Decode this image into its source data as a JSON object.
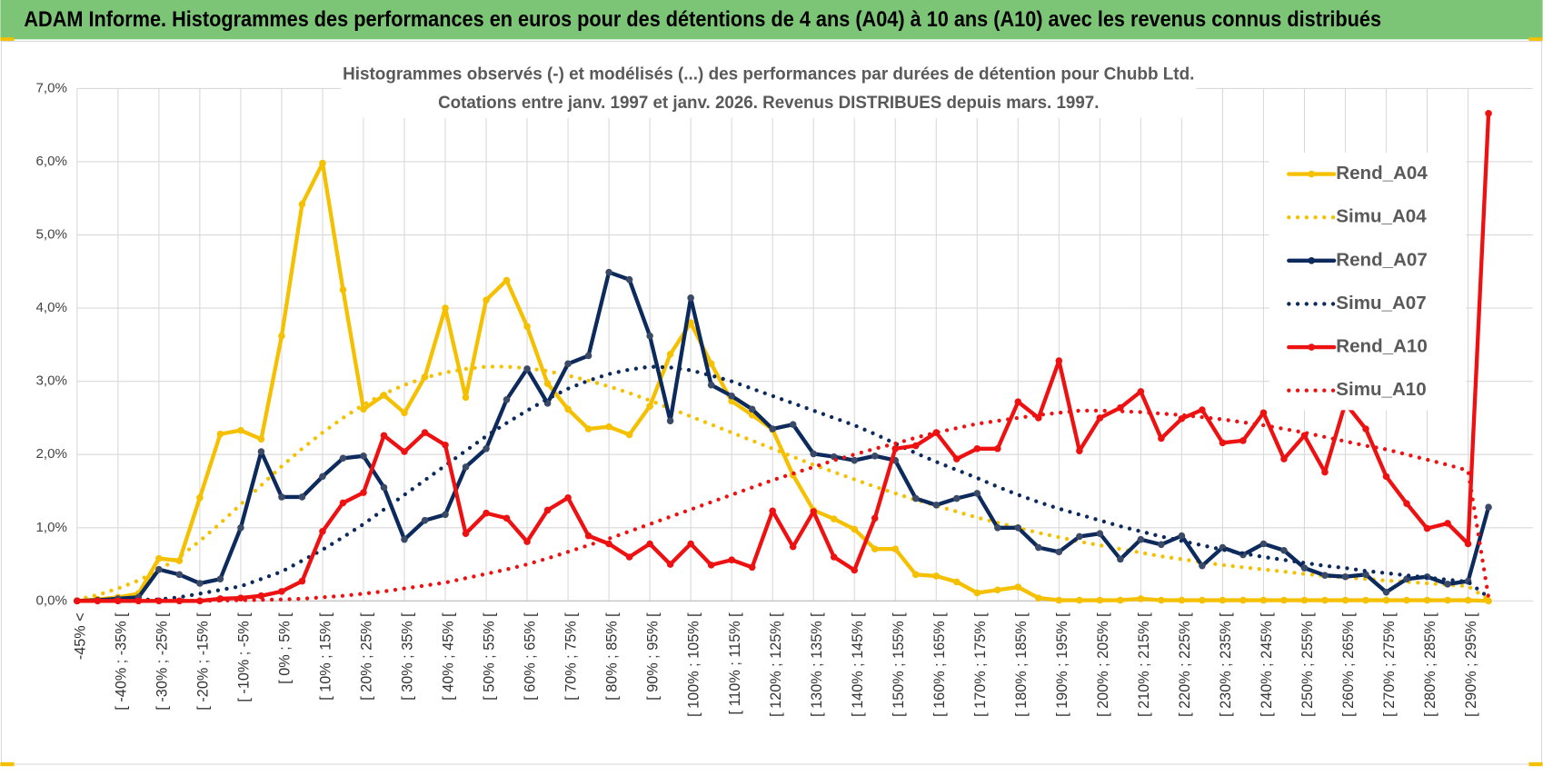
{
  "header": {
    "title": "ADAM Informe. Histogrammes des performances en euros pour des détentions de 4 ans (A04) à 10 ans (A10) avec les revenus connus distribués"
  },
  "chart_data": {
    "type": "line",
    "title": "Histogrammes observés (-) et modélisés (...) des performances par durées de détention pour Chubb Ltd.",
    "subtitle": "Cotations entre janv. 1997 et janv. 2026. Revenus DISTRIBUES depuis mars. 1997.",
    "categories": [
      "-45% <",
      null,
      "[ -40% ; -35% [",
      null,
      "[ -30% ; -25% [",
      null,
      "[ -20% ; -15% [",
      null,
      "[ -10% ; -5% [",
      null,
      "[ 0% ; 5% [",
      null,
      "[ 10% ; 15% [",
      null,
      "[ 20% ; 25% [",
      null,
      "[ 30% ; 35% [",
      null,
      "[ 40% ; 45% [",
      null,
      "[ 50% ; 55% [",
      null,
      "[ 60% ; 65% [",
      null,
      "[ 70% ; 75% [",
      null,
      "[ 80% ; 85% [",
      null,
      "[ 90% ; 95% [",
      null,
      "[ 100% ; 105% [",
      null,
      "[ 110% ; 115% [",
      null,
      "[ 120% ; 125% [",
      null,
      "[ 130% ; 135% [",
      null,
      "[ 140% ; 145% [",
      null,
      "[ 150% ; 155% [",
      null,
      "[ 160% ; 165% [",
      null,
      "[ 170% ; 175% [",
      null,
      "[ 180% ; 185% [",
      null,
      "[ 190% ; 195% [",
      null,
      "[ 200% ; 205% [",
      null,
      "[ 210% ; 215% [",
      null,
      "[ 220% ; 225% [",
      null,
      "[ 230% ; 235% [",
      null,
      "[ 240% ; 245% [",
      null,
      "[ 250% ; 255% [",
      null,
      "[ 260% ; 265% [",
      null,
      "[ 270% ; 275% [",
      null,
      "[ 280% ; 285% [",
      null,
      "[ 290% ; 295% [",
      null
    ],
    "ylim": [
      0,
      7
    ],
    "yticks": [
      {
        "value": 0,
        "label": "0,0%"
      },
      {
        "value": 1,
        "label": "1,0%"
      },
      {
        "value": 2,
        "label": "2,0%"
      },
      {
        "value": 3,
        "label": "3,0%"
      },
      {
        "value": 4,
        "label": "4,0%"
      },
      {
        "value": 5,
        "label": "5,0%"
      },
      {
        "value": 6,
        "label": "6,0%"
      },
      {
        "value": 7,
        "label": "7,0%"
      }
    ],
    "grid": true,
    "legend": "upper right",
    "series": [
      {
        "name": "Rend_A04",
        "color": "#f5c000",
        "style": "solid",
        "markers": true,
        "values": [
          0,
          0.02,
          0.05,
          0.1,
          0.58,
          0.55,
          1.41,
          2.28,
          2.33,
          2.21,
          3.62,
          5.42,
          5.98,
          4.25,
          2.62,
          2.81,
          2.57,
          3.06,
          4.0,
          2.78,
          4.11,
          4.38,
          3.75,
          2.97,
          2.62,
          2.35,
          2.38,
          2.27,
          2.66,
          3.37,
          3.8,
          3.24,
          2.73,
          2.54,
          2.34,
          1.72,
          1.24,
          1.12,
          0.98,
          0.71,
          0.71,
          0.36,
          0.34,
          0.26,
          0.11,
          0.15,
          0.19,
          0.04,
          0.01,
          0.01,
          0.01,
          0.01,
          0.03,
          0.01,
          0.01,
          0.01,
          0.01,
          0.01,
          0.01,
          0.01,
          0.01,
          0.01,
          0.01,
          0.01,
          0.01,
          0.01,
          0.01,
          0.01,
          0.01,
          0
        ]
      },
      {
        "name": "Simu_A04",
        "color": "#f5c000",
        "style": "dotted",
        "markers": false,
        "values": [
          0.02,
          0.08,
          0.17,
          0.28,
          0.42,
          0.6,
          0.82,
          1.06,
          1.32,
          1.58,
          1.84,
          2.08,
          2.3,
          2.5,
          2.68,
          2.83,
          2.95,
          3.05,
          3.12,
          3.17,
          3.2,
          3.2,
          3.18,
          3.14,
          3.08,
          3.01,
          2.93,
          2.84,
          2.74,
          2.63,
          2.52,
          2.41,
          2.3,
          2.19,
          2.08,
          1.97,
          1.86,
          1.76,
          1.66,
          1.56,
          1.47,
          1.38,
          1.3,
          1.22,
          1.14,
          1.07,
          1.0,
          0.93,
          0.87,
          0.81,
          0.76,
          0.71,
          0.66,
          0.61,
          0.57,
          0.53,
          0.49,
          0.46,
          0.43,
          0.4,
          0.37,
          0.34,
          0.32,
          0.3,
          0.28,
          0.26,
          0.24,
          0.22,
          0.2,
          0.02
        ]
      },
      {
        "name": "Rend_A07",
        "color": "#0d2a5c",
        "style": "solid",
        "markers": true,
        "values": [
          0,
          0.01,
          0.03,
          0.05,
          0.43,
          0.36,
          0.24,
          0.3,
          1.0,
          2.04,
          1.42,
          1.42,
          1.7,
          1.95,
          1.98,
          1.55,
          0.84,
          1.1,
          1.18,
          1.83,
          2.08,
          2.75,
          3.17,
          2.7,
          3.24,
          3.35,
          4.49,
          4.39,
          3.62,
          2.46,
          4.14,
          2.95,
          2.8,
          2.62,
          2.35,
          2.41,
          2.01,
          1.97,
          1.92,
          1.98,
          1.92,
          1.4,
          1.31,
          1.4,
          1.47,
          1.0,
          1.0,
          0.73,
          0.67,
          0.88,
          0.92,
          0.57,
          0.84,
          0.77,
          0.89,
          0.48,
          0.73,
          0.63,
          0.78,
          0.69,
          0.45,
          0.35,
          0.33,
          0.36,
          0.12,
          0.3,
          0.33,
          0.23,
          0.27,
          1.28
        ]
      },
      {
        "name": "Simu_A07",
        "color": "#0d2a5c",
        "style": "dotted",
        "markers": false,
        "values": [
          0,
          0.005,
          0.01,
          0.015,
          0.02,
          0.05,
          0.1,
          0.15,
          0.2,
          0.3,
          0.4,
          0.55,
          0.7,
          0.87,
          1.05,
          1.25,
          1.45,
          1.65,
          1.85,
          2.05,
          2.25,
          2.43,
          2.6,
          2.76,
          2.9,
          3.01,
          3.1,
          3.16,
          3.2,
          3.19,
          3.15,
          3.08,
          3.0,
          2.9,
          2.8,
          2.7,
          2.6,
          2.5,
          2.4,
          2.28,
          2.15,
          2.02,
          1.9,
          1.79,
          1.68,
          1.56,
          1.45,
          1.35,
          1.26,
          1.18,
          1.1,
          1.02,
          0.95,
          0.88,
          0.82,
          0.76,
          0.7,
          0.65,
          0.6,
          0.56,
          0.52,
          0.48,
          0.45,
          0.41,
          0.38,
          0.35,
          0.32,
          0.29,
          0.26,
          0.05
        ]
      },
      {
        "name": "Rend_A10",
        "color": "#ee1111",
        "style": "solid",
        "markers": true,
        "values": [
          0,
          0,
          0,
          0,
          0,
          0,
          0,
          0.03,
          0.04,
          0.07,
          0.13,
          0.27,
          0.95,
          1.34,
          1.48,
          2.26,
          2.04,
          2.3,
          2.13,
          0.92,
          1.2,
          1.13,
          0.81,
          1.24,
          1.41,
          0.89,
          0.78,
          0.6,
          0.78,
          0.5,
          0.78,
          0.49,
          0.56,
          0.46,
          1.23,
          0.74,
          1.22,
          0.6,
          0.42,
          1.13,
          2.08,
          2.12,
          2.3,
          1.94,
          2.08,
          2.08,
          2.72,
          2.5,
          3.28,
          2.05,
          2.5,
          2.64,
          2.86,
          2.22,
          2.49,
          2.61,
          2.16,
          2.19,
          2.57,
          1.94,
          2.26,
          1.76,
          2.7,
          2.35,
          1.7,
          1.33,
          0.99,
          1.06,
          0.78,
          6.66
        ]
      },
      {
        "name": "Simu_A10",
        "color": "#ee1111",
        "style": "dotted",
        "markers": false,
        "values": [
          0,
          0,
          0,
          0,
          0,
          0,
          0,
          0.005,
          0.01,
          0.015,
          0.02,
          0.03,
          0.05,
          0.07,
          0.1,
          0.13,
          0.17,
          0.21,
          0.25,
          0.31,
          0.37,
          0.43,
          0.5,
          0.58,
          0.67,
          0.76,
          0.85,
          0.95,
          1.05,
          1.15,
          1.25,
          1.35,
          1.45,
          1.55,
          1.65,
          1.74,
          1.83,
          1.92,
          2.0,
          2.08,
          2.15,
          2.23,
          2.3,
          2.36,
          2.42,
          2.46,
          2.5,
          2.54,
          2.57,
          2.6,
          2.6,
          2.59,
          2.58,
          2.56,
          2.54,
          2.51,
          2.48,
          2.44,
          2.4,
          2.35,
          2.3,
          2.24,
          2.18,
          2.12,
          2.07,
          2.0,
          1.93,
          1.86,
          1.78,
          0.05
        ]
      }
    ]
  }
}
